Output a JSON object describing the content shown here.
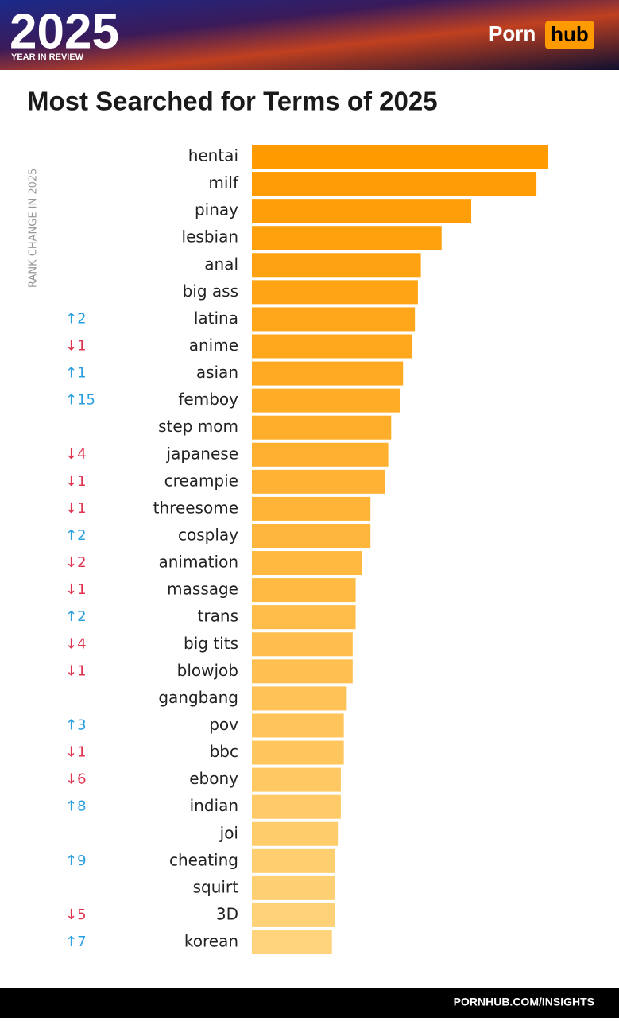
{
  "header": {
    "year": "2025",
    "subtitle": "YEAR IN REVIEW",
    "logo_left": "Porn",
    "logo_right": "hub"
  },
  "footer": "PORNHUB.COM/INSIGHTS",
  "chart_data": {
    "type": "hbar",
    "title": "Most Searched for Terms of 2025",
    "rank_axis_label": "RANK CHANGE IN 2025",
    "categories": [
      "hentai",
      "milf",
      "pinay",
      "lesbian",
      "anal",
      "big ass",
      "latina",
      "anime",
      "asian",
      "femboy",
      "step mom",
      "japanese",
      "creampie",
      "threesome",
      "cosplay",
      "animation",
      "massage",
      "trans",
      "big tits",
      "blowjob",
      "gangbang",
      "pov",
      "bbc",
      "ebony",
      "indian",
      "joi",
      "cheating",
      "squirt",
      "3D",
      "korean"
    ],
    "values": [
      100,
      96,
      74,
      64,
      57,
      56,
      55,
      54,
      51,
      50,
      47,
      46,
      45,
      40,
      40,
      37,
      35,
      35,
      34,
      34,
      32,
      31,
      31,
      30,
      30,
      29,
      28,
      28,
      28,
      27
    ],
    "rank_changes": [
      null,
      null,
      null,
      null,
      null,
      null,
      "↑2",
      "↓1",
      "↑1",
      "↑15",
      null,
      "↓4",
      "↓1",
      "↓1",
      "↑2",
      "↓2",
      "↓1",
      "↑2",
      "↓4",
      "↓1",
      null,
      "↑3",
      "↓1",
      "↓6",
      "↑8",
      null,
      "↑9",
      null,
      "↓5",
      "↑7"
    ],
    "xlim": [
      0,
      100
    ],
    "color_start": "#ff9a00",
    "color_end": "#ffd47c",
    "up_color": "#2a9fe0",
    "down_color": "#e0334f"
  }
}
